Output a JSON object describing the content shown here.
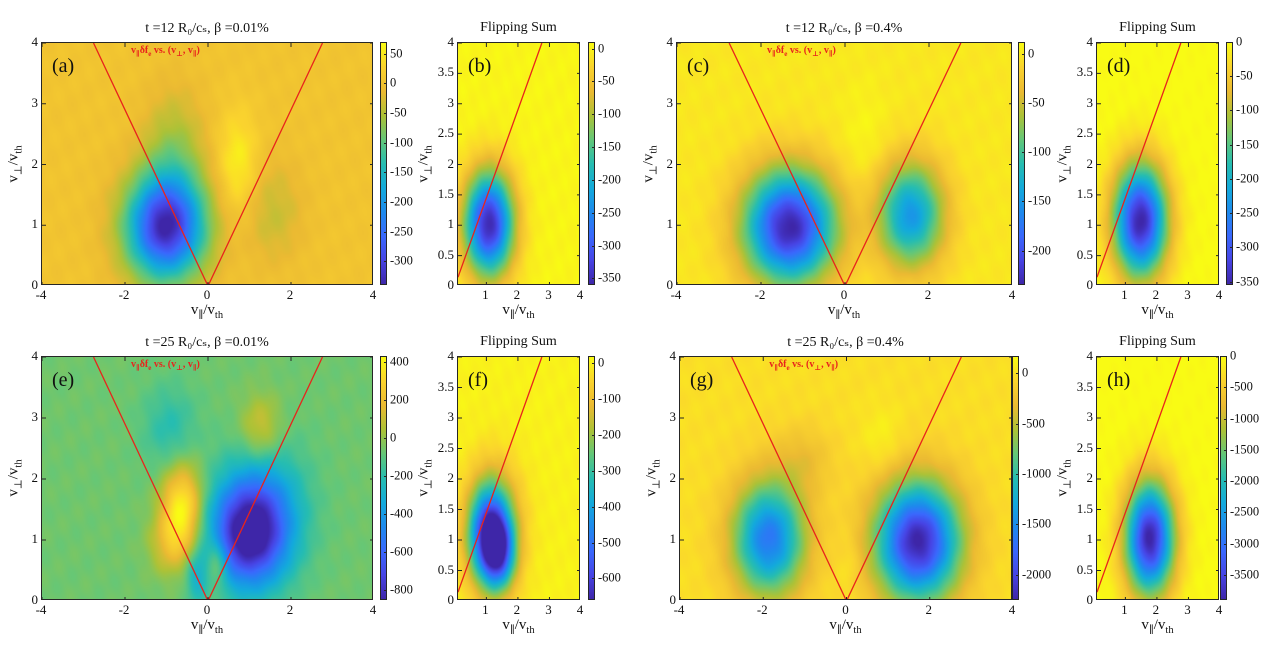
{
  "chart_data": [
    {
      "id": "a",
      "type": "heatmap",
      "panel_label": "(a)",
      "title": "t =12 R₀/cₛ,  β =0.01%",
      "annotation": "v∥δfₑ vs. (v⊥, v∥)",
      "xlabel": "v∥/vₜₕ",
      "ylabel": "v⊥/vₜₕ",
      "xlim": [
        -4,
        4
      ],
      "ylim": [
        0,
        4
      ],
      "xticks": [
        "-4",
        "-2",
        "0",
        "2",
        "4"
      ],
      "xtick_values": [
        -4,
        -2,
        0,
        2,
        4
      ],
      "yticks": [
        "0",
        "1",
        "2",
        "3",
        "4"
      ],
      "ytick_values": [
        0,
        1,
        2,
        3,
        4
      ],
      "clim": [
        -340,
        70
      ],
      "colorbar_ticks": [
        "50",
        "0",
        "-50",
        "-100",
        "-150",
        "-200",
        "-250",
        "-300"
      ],
      "colorbar_tick_values": [
        50,
        0,
        -50,
        -100,
        -150,
        -200,
        -250,
        -300
      ],
      "background_value": 5,
      "features": [
        {
          "v_par": -1.0,
          "v_perp": 0.95,
          "amp": -340,
          "sx": 0.65,
          "sy": 0.6
        },
        {
          "v_par": -0.8,
          "v_perp": 2.2,
          "amp": -60,
          "sx": 0.5,
          "sy": 0.7
        },
        {
          "v_par": 0.75,
          "v_perp": 2.0,
          "amp": 55,
          "sx": 0.35,
          "sy": 0.6
        },
        {
          "v_par": 1.6,
          "v_perp": 1.2,
          "amp": -40,
          "sx": 0.5,
          "sy": 0.6
        }
      ],
      "lines": [
        {
          "type": "resonance-cone",
          "slope": 1.45,
          "shape": "V",
          "color": "#e8231c"
        }
      ],
      "colormap": "parula"
    },
    {
      "id": "b",
      "type": "heatmap",
      "panel_label": "(b)",
      "title": "Flipping Sum",
      "xlabel": "v∥/vₜₕ",
      "ylabel": "v⊥/vₜₕ",
      "xlim": [
        0.1,
        4
      ],
      "ylim": [
        0,
        4
      ],
      "xticks": [
        "1",
        "2",
        "3",
        "4"
      ],
      "xtick_values": [
        1,
        2,
        3,
        4
      ],
      "yticks": [
        "0",
        "0.5",
        "1",
        "1.5",
        "2",
        "2.5",
        "3",
        "3.5",
        "4"
      ],
      "ytick_values": [
        0,
        0.5,
        1,
        1.5,
        2,
        2.5,
        3,
        3.5,
        4
      ],
      "clim": [
        -360,
        10
      ],
      "colorbar_ticks": [
        "0",
        "-50",
        "-100",
        "-150",
        "-200",
        "-250",
        "-300",
        "-350"
      ],
      "colorbar_tick_values": [
        0,
        -50,
        -100,
        -150,
        -200,
        -250,
        -300,
        -350
      ],
      "background_value": 5,
      "features": [
        {
          "v_par": 1.1,
          "v_perp": 1.0,
          "amp": -360,
          "sx": 0.55,
          "sy": 0.6
        }
      ],
      "lines": [
        {
          "type": "resonance-line",
          "slope": 1.45,
          "shape": "/",
          "color": "#e8231c"
        }
      ],
      "colormap": "parula"
    },
    {
      "id": "c",
      "type": "heatmap",
      "panel_label": "(c)",
      "title": "t =12 R₀/cₛ,  β =0.4%",
      "annotation": "v∥δfₑ vs. (v⊥, v∥)",
      "xlabel": "v∥/vₜₕ",
      "ylabel": "v⊥/vₜₕ",
      "xlim": [
        -4,
        4
      ],
      "ylim": [
        0,
        4
      ],
      "xticks": [
        "-4",
        "-2",
        "0",
        "2",
        "4"
      ],
      "xtick_values": [
        -4,
        -2,
        0,
        2,
        4
      ],
      "yticks": [
        "0",
        "1",
        "2",
        "3",
        "4"
      ],
      "ytick_values": [
        0,
        1,
        2,
        3,
        4
      ],
      "clim": [
        -235,
        12
      ],
      "colorbar_ticks": [
        "0",
        "-50",
        "-100",
        "-150",
        "-200"
      ],
      "colorbar_tick_values": [
        0,
        -50,
        -100,
        -150,
        -200
      ],
      "background_value": 0,
      "features": [
        {
          "v_par": -1.3,
          "v_perp": 0.95,
          "amp": -235,
          "sx": 0.75,
          "sy": 0.65
        },
        {
          "v_par": 1.6,
          "v_perp": 1.15,
          "amp": -150,
          "sx": 0.55,
          "sy": 0.6
        },
        {
          "v_par": 0.5,
          "v_perp": 2.3,
          "amp": 10,
          "sx": 0.4,
          "sy": 0.7
        }
      ],
      "lines": [
        {
          "type": "resonance-cone",
          "slope": 1.45,
          "shape": "V",
          "color": "#e8231c"
        }
      ],
      "colormap": "parula"
    },
    {
      "id": "d",
      "type": "heatmap",
      "panel_label": "(d)",
      "title": "Flipping Sum",
      "xlabel": "v∥/vₜₕ",
      "ylabel": "v⊥/vₜₕ",
      "xlim": [
        0.1,
        4
      ],
      "ylim": [
        0,
        4
      ],
      "xticks": [
        "1",
        "2",
        "3",
        "4"
      ],
      "xtick_values": [
        1,
        2,
        3,
        4
      ],
      "yticks": [
        "0",
        "0.5",
        "1",
        "1.5",
        "2",
        "2.5",
        "3",
        "3.5",
        "4"
      ],
      "ytick_values": [
        0,
        0.5,
        1,
        1.5,
        2,
        2.5,
        3,
        3.5,
        4
      ],
      "clim": [
        -355,
        0
      ],
      "colorbar_ticks": [
        "0",
        "-50",
        "-100",
        "-150",
        "-200",
        "-250",
        "-300",
        "-350"
      ],
      "colorbar_tick_values": [
        0,
        -50,
        -100,
        -150,
        -200,
        -250,
        -300,
        -350
      ],
      "background_value": 0,
      "features": [
        {
          "v_par": 1.5,
          "v_perp": 1.05,
          "amp": -355,
          "sx": 0.6,
          "sy": 0.65
        }
      ],
      "lines": [
        {
          "type": "resonance-line",
          "slope": 1.45,
          "shape": "/",
          "color": "#e8231c"
        }
      ],
      "colormap": "parula"
    },
    {
      "id": "e",
      "type": "heatmap",
      "panel_label": "(e)",
      "title": "t =25 R₀/cₛ,  β =0.01%",
      "annotation": "v∥δfₑ vs. (v⊥, v∥)",
      "xlabel": "v∥/vₜₕ",
      "ylabel": "v⊥/vₜₕ",
      "xlim": [
        -4,
        4
      ],
      "ylim": [
        0,
        4
      ],
      "xticks": [
        "-4",
        "-2",
        "0",
        "2",
        "4"
      ],
      "xtick_values": [
        -4,
        -2,
        0,
        2,
        4
      ],
      "yticks": [
        "0",
        "1",
        "2",
        "3",
        "4"
      ],
      "ytick_values": [
        0,
        1,
        2,
        3,
        4
      ],
      "clim": [
        -850,
        430
      ],
      "colorbar_ticks": [
        "400",
        "200",
        "0",
        "-200",
        "-400",
        "-600",
        "-800"
      ],
      "colorbar_tick_values": [
        400,
        200,
        0,
        -200,
        -400,
        -600,
        -800
      ],
      "background_value": -60,
      "features": [
        {
          "v_par": 1.0,
          "v_perp": 1.05,
          "amp": -800,
          "sx": 0.65,
          "sy": 0.6
        },
        {
          "v_par": 1.4,
          "v_perp": 1.6,
          "amp": -250,
          "sx": 0.7,
          "sy": 0.7
        },
        {
          "v_par": -0.6,
          "v_perp": 1.5,
          "amp": 480,
          "sx": 0.35,
          "sy": 0.5
        },
        {
          "v_par": -0.9,
          "v_perp": 0.9,
          "amp": 180,
          "sx": 0.35,
          "sy": 0.35
        },
        {
          "v_par": 0.25,
          "v_perp": 0.6,
          "amp": 250,
          "sx": 0.18,
          "sy": 0.3
        },
        {
          "v_par": -0.25,
          "v_perp": 0.35,
          "amp": -200,
          "sx": 0.18,
          "sy": 0.3
        },
        {
          "v_par": 1.3,
          "v_perp": 2.8,
          "amp": 200,
          "sx": 0.35,
          "sy": 0.4
        },
        {
          "v_par": -0.9,
          "v_perp": 2.8,
          "amp": -150,
          "sx": 0.45,
          "sy": 0.5
        }
      ],
      "lines": [
        {
          "type": "resonance-cone",
          "slope": 1.45,
          "shape": "V",
          "color": "#e8231c"
        }
      ],
      "colormap": "parula"
    },
    {
      "id": "f",
      "type": "heatmap",
      "panel_label": "(f)",
      "title": "Flipping Sum",
      "xlabel": "v∥/vₜₕ",
      "ylabel": "v⊥/vₜₕ",
      "xlim": [
        0.1,
        4
      ],
      "ylim": [
        0,
        4
      ],
      "xticks": [
        "1",
        "2",
        "3",
        "4"
      ],
      "xtick_values": [
        1,
        2,
        3,
        4
      ],
      "yticks": [
        "0",
        "0.5",
        "1",
        "1.5",
        "2",
        "2.5",
        "3",
        "3.5",
        "4"
      ],
      "ytick_values": [
        0,
        0.5,
        1,
        1.5,
        2,
        2.5,
        3,
        3.5,
        4
      ],
      "clim": [
        -660,
        20
      ],
      "colorbar_ticks": [
        "0",
        "-100",
        "-200",
        "-300",
        "-400",
        "-500",
        "-600"
      ],
      "colorbar_tick_values": [
        0,
        -100,
        -200,
        -300,
        -400,
        -500,
        -600
      ],
      "background_value": 5,
      "features": [
        {
          "v_par": 1.1,
          "v_perp": 1.05,
          "amp": -520,
          "sx": 0.45,
          "sy": 0.55
        },
        {
          "v_par": 1.45,
          "v_perp": 0.75,
          "amp": -320,
          "sx": 0.35,
          "sy": 0.4
        },
        {
          "v_par": 1.3,
          "v_perp": 1.2,
          "amp": -200,
          "sx": 0.6,
          "sy": 0.7
        }
      ],
      "lines": [
        {
          "type": "resonance-line",
          "slope": 1.45,
          "shape": "/",
          "color": "#e8231c"
        }
      ],
      "colormap": "parula"
    },
    {
      "id": "g",
      "type": "heatmap",
      "panel_label": "(g)",
      "title": "t =25 R₀/cₛ,  β =0.4%",
      "annotation": "v∥δfₑ vs. (v⊥, v∥)",
      "xlabel": "v∥/vₜₕ",
      "ylabel": "v⊥/vₜₕ",
      "xlim": [
        -4,
        4
      ],
      "ylim": [
        0,
        4
      ],
      "xticks": [
        "-4",
        "-2",
        "0",
        "2",
        "4"
      ],
      "xtick_values": [
        -4,
        -2,
        0,
        2,
        4
      ],
      "yticks": [
        "0",
        "1",
        "2",
        "3",
        "4"
      ],
      "ytick_values": [
        0,
        1,
        2,
        3,
        4
      ],
      "clim": [
        -2250,
        170
      ],
      "colorbar_ticks": [
        "0",
        "-500",
        "-1000",
        "-1500",
        "-2000"
      ],
      "colorbar_tick_values": [
        0,
        -500,
        -1000,
        -1500,
        -2000
      ],
      "background_value": 0,
      "features": [
        {
          "v_par": -1.85,
          "v_perp": 1.0,
          "amp": -1650,
          "sx": 0.6,
          "sy": 0.65
        },
        {
          "v_par": 1.75,
          "v_perp": 0.95,
          "amp": -2250,
          "sx": 0.7,
          "sy": 0.68
        },
        {
          "v_par": 0.9,
          "v_perp": 2.6,
          "amp": 130,
          "sx": 0.35,
          "sy": 0.4
        },
        {
          "v_par": -1.0,
          "v_perp": 2.3,
          "amp": -250,
          "sx": 0.5,
          "sy": 0.4
        },
        {
          "v_par": 0.1,
          "v_perp": 0.6,
          "amp": 100,
          "sx": 0.18,
          "sy": 0.35
        }
      ],
      "lines": [
        {
          "type": "resonance-cone",
          "slope": 1.45,
          "shape": "V",
          "color": "#e8231c"
        }
      ],
      "colormap": "parula"
    },
    {
      "id": "h",
      "type": "heatmap",
      "panel_label": "(h)",
      "title": "Flipping Sum",
      "xlabel": "v∥/vₜₕ",
      "ylabel": "v⊥/vₜₕ",
      "xlim": [
        0.1,
        4
      ],
      "ylim": [
        0,
        4
      ],
      "xticks": [
        "1",
        "2",
        "3",
        "4"
      ],
      "xtick_values": [
        1,
        2,
        3,
        4
      ],
      "yticks": [
        "0",
        "0.5",
        "1",
        "1.5",
        "2",
        "2.5",
        "3",
        "3.5",
        "4"
      ],
      "ytick_values": [
        0,
        0.5,
        1,
        1.5,
        2,
        2.5,
        3,
        3.5,
        4
      ],
      "clim": [
        -3900,
        0
      ],
      "colorbar_ticks": [
        "0",
        "-500",
        "-1000",
        "-1500",
        "-2000",
        "-2500",
        "-3000",
        "-3500"
      ],
      "colorbar_tick_values": [
        0,
        -500,
        -1000,
        -1500,
        -2000,
        -2500,
        -3000,
        -3500
      ],
      "background_value": 0,
      "features": [
        {
          "v_par": 1.8,
          "v_perp": 1.0,
          "amp": -3900,
          "sx": 0.55,
          "sy": 0.65
        }
      ],
      "lines": [
        {
          "type": "resonance-line",
          "slope": 1.45,
          "shape": "/",
          "color": "#e8231c"
        }
      ],
      "colormap": "parula"
    }
  ]
}
